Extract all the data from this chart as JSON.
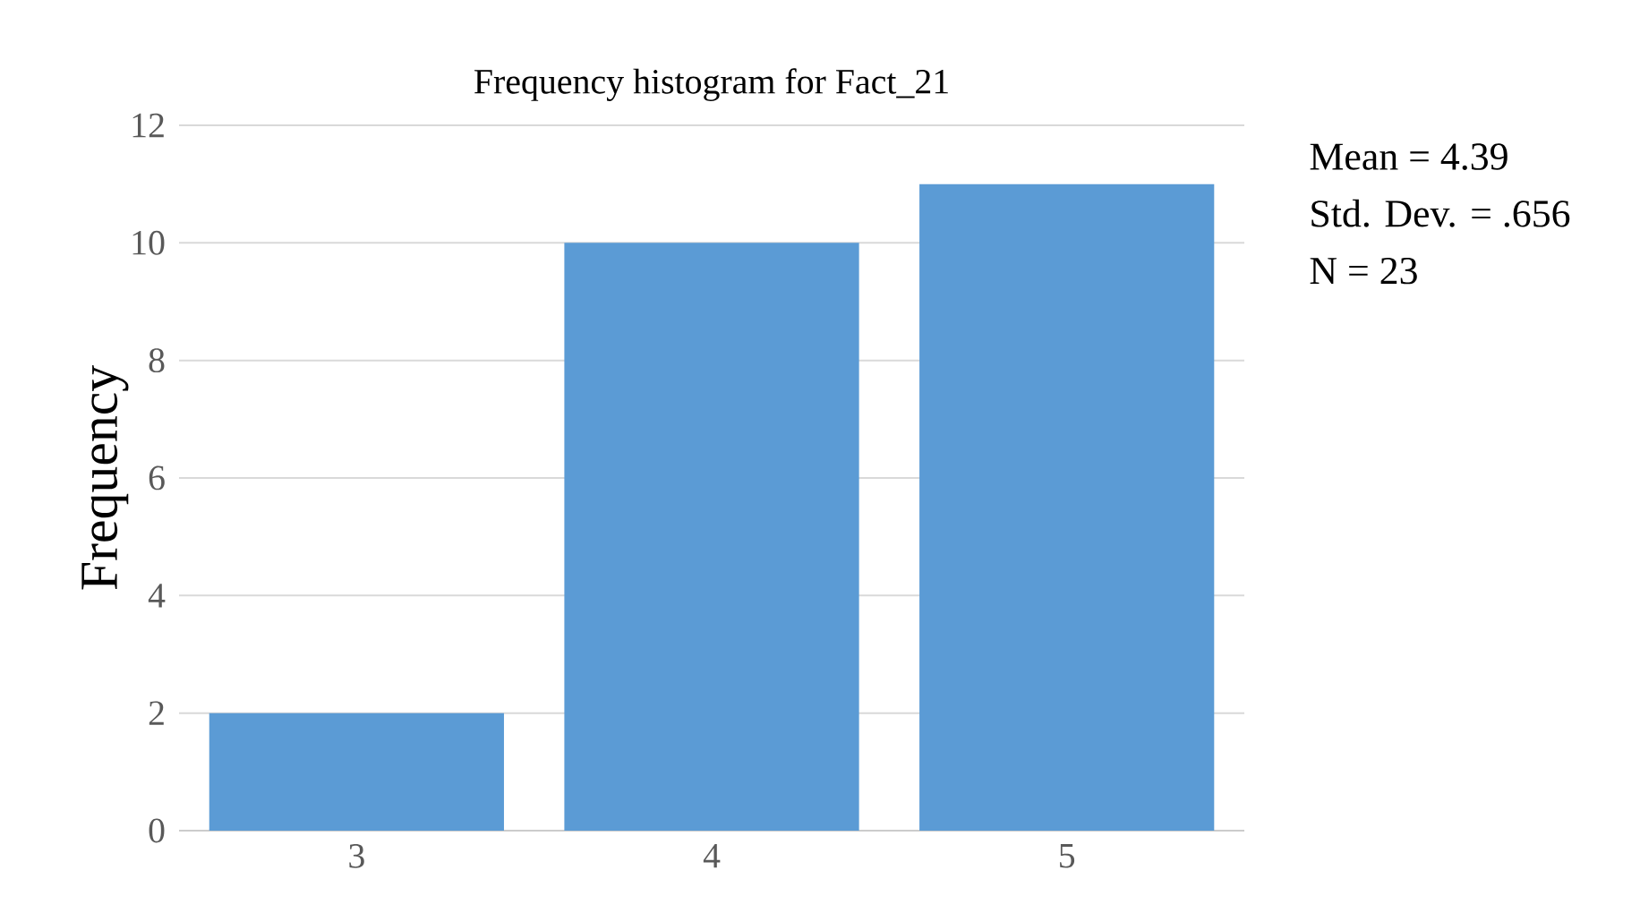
{
  "chart_data": {
    "type": "bar",
    "title": "Frequency histogram for  Fact_21",
    "ylabel": "Frequency",
    "categories": [
      "3",
      "4",
      "5"
    ],
    "values": [
      2,
      10,
      11
    ],
    "color": "#5b9bd5",
    "ylim": [
      0,
      12
    ],
    "yticks": [
      0,
      2,
      4,
      6,
      8,
      10,
      12
    ],
    "grid": "y",
    "annotations": [
      "Mean = 4.39",
      "Std. Dev. = .656",
      "N = 23"
    ]
  }
}
